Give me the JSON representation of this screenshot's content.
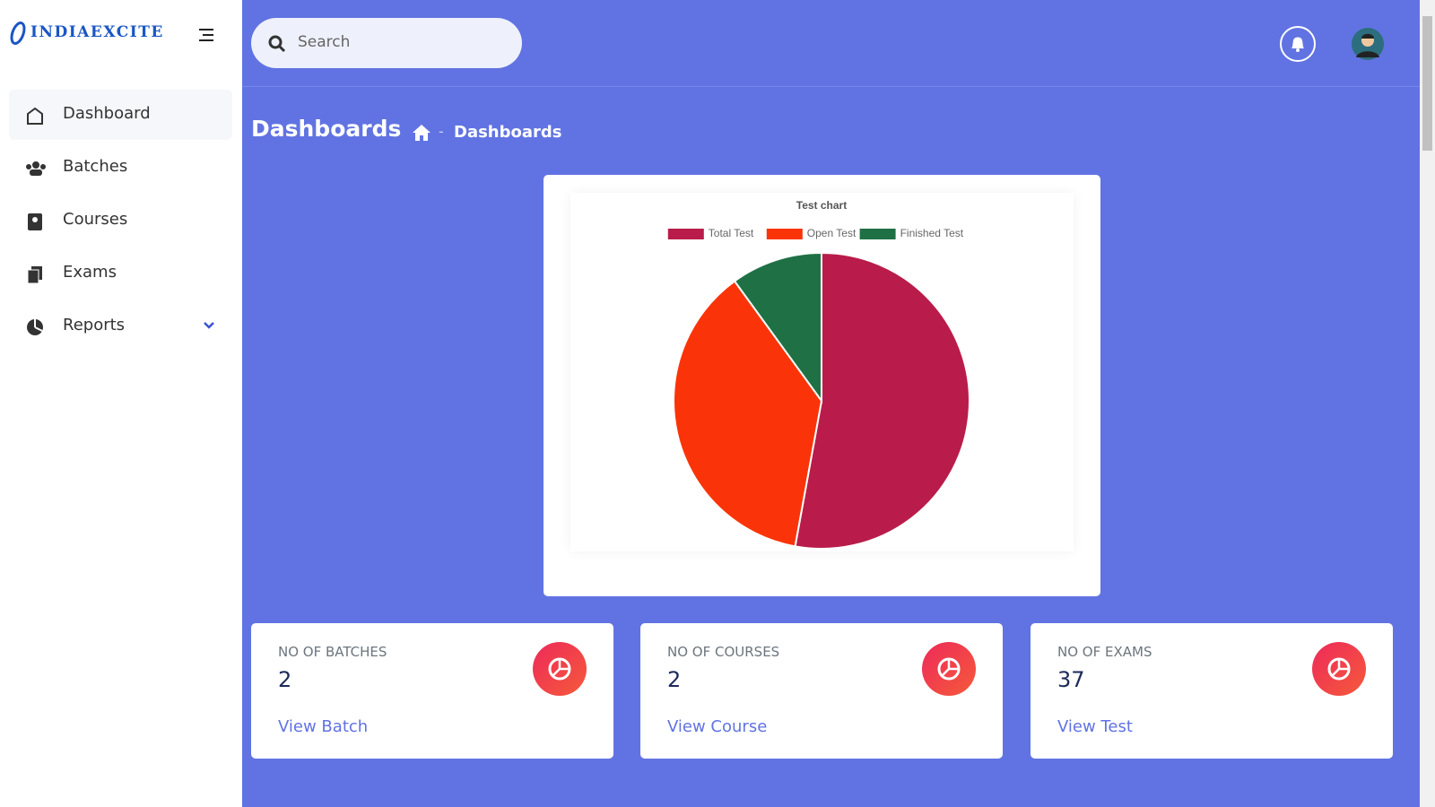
{
  "sidebar": {
    "brand": "INDIAEXCITE",
    "menu": [
      "Dashboard",
      "Batches",
      "Courses",
      "Exams",
      "Reports"
    ]
  },
  "header": {
    "search_placeholder": "Search"
  },
  "page": {
    "title": "Dashboards",
    "breadcrumb": "Dashboards"
  },
  "chart_data": {
    "type": "pie",
    "title": "Test chart",
    "categories": [
      "Total Test",
      "Open Test",
      "Finished Test"
    ],
    "values": [
      37,
      26,
      7
    ],
    "colors": [
      "#b91c4a",
      "#fa3408",
      "#1f7145"
    ],
    "legend": "top"
  },
  "stats": [
    {
      "label": "NO OF BATCHES",
      "value": 2,
      "link": "View Batch"
    },
    {
      "label": "NO OF COURSES",
      "value": 2,
      "link": "View Course"
    },
    {
      "label": "NO OF EXAMS",
      "value": 37,
      "link": "View Test"
    }
  ]
}
